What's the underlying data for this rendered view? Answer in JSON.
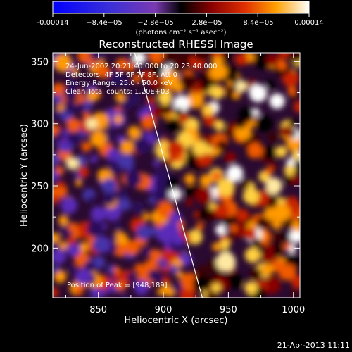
{
  "colorbar": {
    "ticks": [
      "-0.00014",
      "−8.4e−05",
      "−2.8e−05",
      "2.8e−05",
      "8.4e−05",
      "0.00014"
    ],
    "units": "(photons cm⁻² s⁻¹ asec⁻²)",
    "min": -0.00014,
    "max": 0.00014
  },
  "title": "Reconstructed RHESSI Image",
  "info": {
    "line1": "24-Jun-2002 20:21:40.000 to 20:23:40.000",
    "line2": "Detectors: 4F 5F 6F 7F 8F, Att 0",
    "line3": "Energy Range: 25.0 - 50.0 keV",
    "line4": "Clean     Total counts: 1.20E+03"
  },
  "peak_label": "Position of Peak = [948,189]",
  "footer_timestamp": "21-Apr-2013 11:11",
  "chart_data": {
    "type": "heatmap",
    "title": "Reconstructed RHESSI Image",
    "xlabel": "Heliocentric X (arcsec)",
    "ylabel": "Heliocentric Y (arcsec)",
    "xlim": [
      815,
      1005
    ],
    "ylim": [
      160,
      357
    ],
    "xticks": [
      850,
      900,
      950,
      1000
    ],
    "yticks": [
      200,
      250,
      300,
      350
    ],
    "xtick_labels": [
      "850",
      "900",
      "950",
      "1000"
    ],
    "ytick_labels": [
      "200",
      "250",
      "300",
      "350"
    ],
    "peak": [
      948,
      189
    ],
    "limb_line": {
      "x": [
        878,
        930
      ],
      "y": [
        357,
        160
      ]
    }
  }
}
